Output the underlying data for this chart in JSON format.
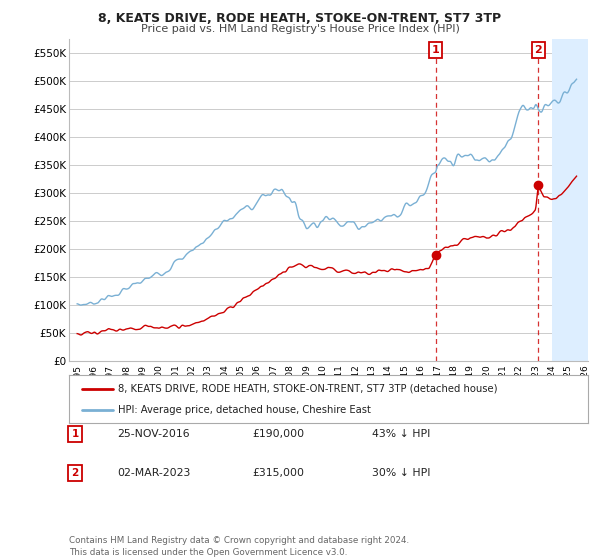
{
  "title": "8, KEATS DRIVE, RODE HEATH, STOKE-ON-TRENT, ST7 3TP",
  "subtitle": "Price paid vs. HM Land Registry's House Price Index (HPI)",
  "legend_line1": "8, KEATS DRIVE, RODE HEATH, STOKE-ON-TRENT, ST7 3TP (detached house)",
  "legend_line2": "HPI: Average price, detached house, Cheshire East",
  "footer": "Contains HM Land Registry data © Crown copyright and database right 2024.\nThis data is licensed under the Open Government Licence v3.0.",
  "marker1_date": "25-NOV-2016",
  "marker1_price": "£190,000",
  "marker1_pct": "43% ↓ HPI",
  "marker2_date": "02-MAR-2023",
  "marker2_price": "£315,000",
  "marker2_pct": "30% ↓ HPI",
  "marker1_x": 2016.9,
  "marker1_y": 190000,
  "marker2_x": 2023.17,
  "marker2_y": 315000,
  "hatch_start": 2024.0,
  "ylim": [
    0,
    575000
  ],
  "xlim": [
    1994.5,
    2026.2
  ],
  "yticks": [
    0,
    50000,
    100000,
    150000,
    200000,
    250000,
    300000,
    350000,
    400000,
    450000,
    500000,
    550000
  ],
  "ytick_labels": [
    "£0",
    "£50K",
    "£100K",
    "£150K",
    "£200K",
    "£250K",
    "£300K",
    "£350K",
    "£400K",
    "£450K",
    "£500K",
    "£550K"
  ],
  "xticks": [
    1995,
    1996,
    1997,
    1998,
    1999,
    2000,
    2001,
    2002,
    2003,
    2004,
    2005,
    2006,
    2007,
    2008,
    2009,
    2010,
    2011,
    2012,
    2013,
    2014,
    2015,
    2016,
    2017,
    2018,
    2019,
    2020,
    2021,
    2022,
    2023,
    2024,
    2025,
    2026
  ],
  "red_color": "#cc0000",
  "blue_color": "#7ab0d4",
  "marker_box_color": "#cc0000",
  "bg_color": "#ffffff",
  "grid_color": "#cccccc",
  "hatch_color": "#ddeeff"
}
